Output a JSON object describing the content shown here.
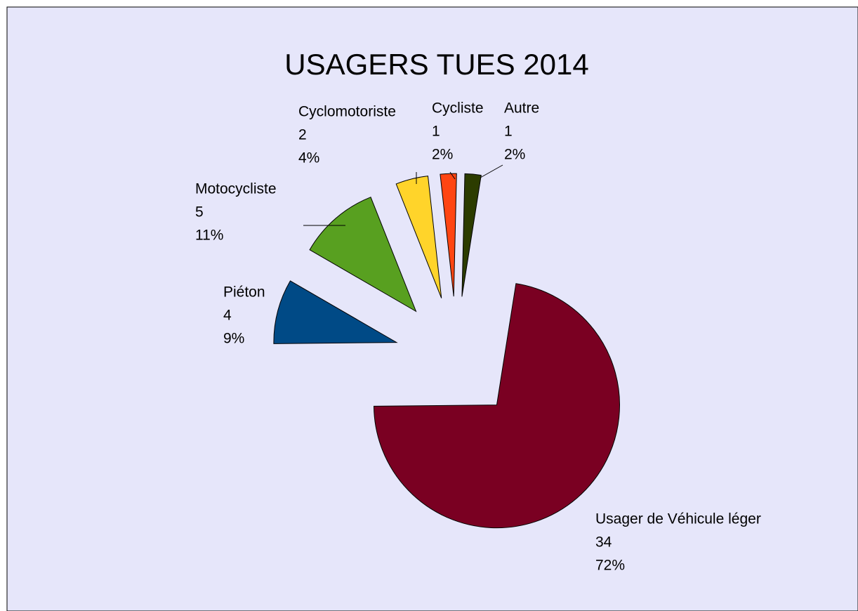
{
  "chart_data": {
    "type": "pie",
    "title": "USAGERS TUES 2014",
    "categories": [
      "Usager de Véhicule léger",
      "Piéton",
      "Motocycliste",
      "Cyclomotoriste",
      "Cycliste",
      "Autre"
    ],
    "values": [
      34,
      4,
      5,
      2,
      1,
      1
    ],
    "percentages": [
      72,
      9,
      11,
      4,
      2,
      2
    ],
    "percentage_labels": [
      "72%",
      "9%",
      "11%",
      "4%",
      "2%",
      "2%"
    ],
    "colors": [
      "#7a0022",
      "#004a86",
      "#58a020",
      "#ffd42a",
      "#ff4512",
      "#2c3c00"
    ]
  }
}
